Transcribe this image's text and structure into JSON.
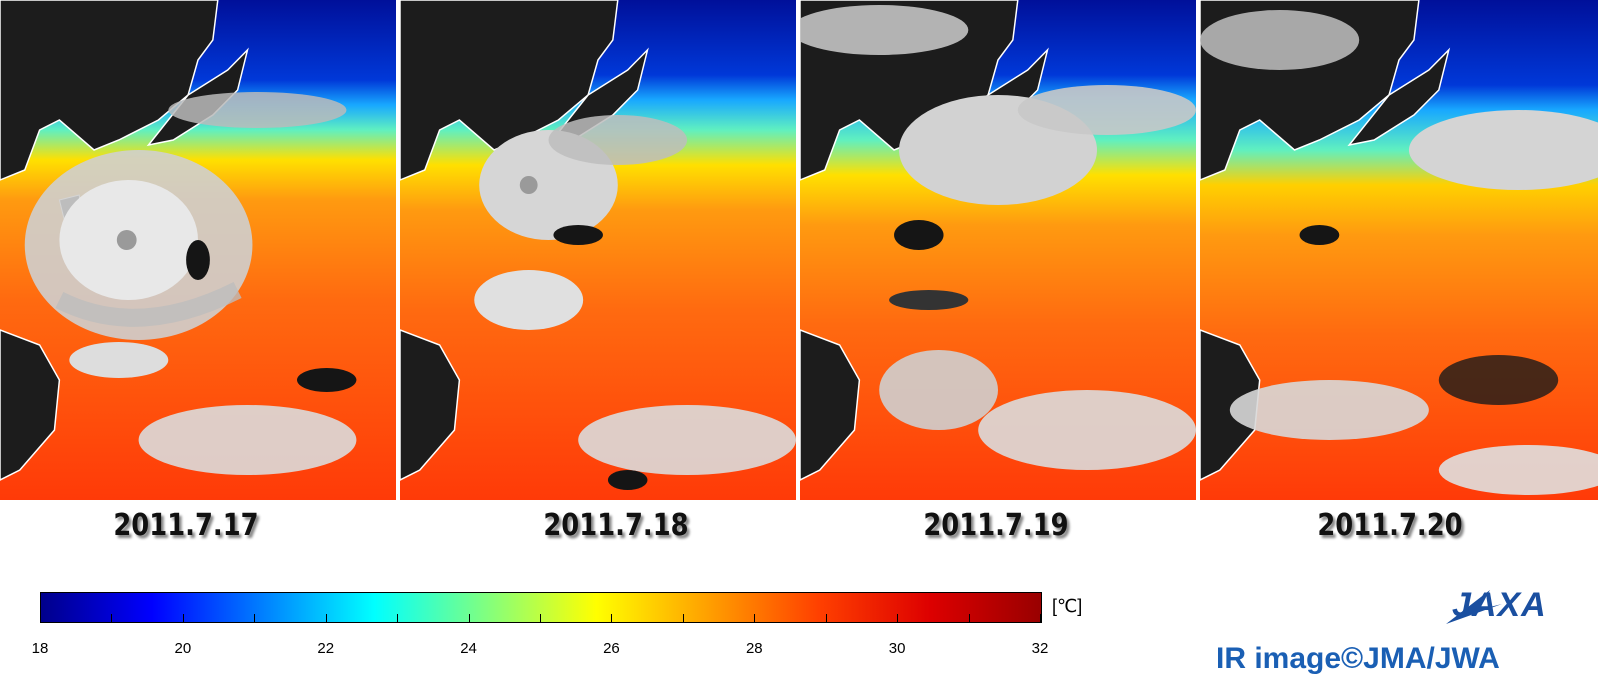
{
  "panels": [
    {
      "date": "2011.7.17"
    },
    {
      "date": "2011.7.18"
    },
    {
      "date": "2011.7.19"
    },
    {
      "date": "2011.7.20"
    }
  ],
  "colorbar": {
    "min": 18,
    "max": 32,
    "tick_labels": [
      "18",
      "20",
      "22",
      "24",
      "26",
      "28",
      "30",
      "32"
    ],
    "unit": "[℃]",
    "colors": [
      "#00008b",
      "#0000ff",
      "#0080ff",
      "#00ffff",
      "#80ff80",
      "#ffff00",
      "#ffa000",
      "#ff4000",
      "#dd0000",
      "#990000"
    ]
  },
  "logo": {
    "text": "JAXA"
  },
  "credit": "IR image©JMA/JWA",
  "colors": {
    "ocean_cold": "#001a9a",
    "ocean_warm": "#ff5a10",
    "land": "#222222",
    "cloud": "#d8d8d8",
    "coast": "#ffffff",
    "brand": "#1a5fb4"
  }
}
